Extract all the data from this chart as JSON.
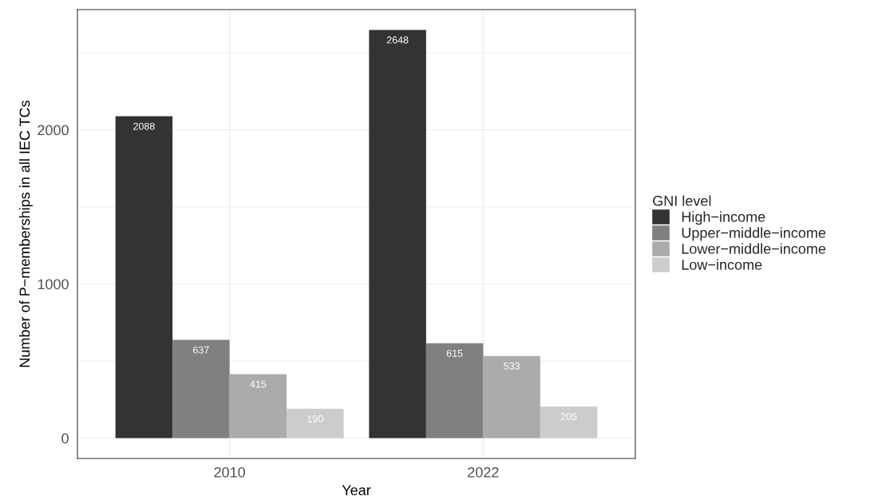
{
  "chart_data": {
    "type": "bar",
    "xlabel": "Year",
    "ylabel": "Number of P−memberships in all IEC TCs",
    "legend_title": "GNI level",
    "categories": [
      "2010",
      "2022"
    ],
    "series": [
      {
        "name": "High−income",
        "color": "#333333",
        "values": [
          2088,
          2648
        ]
      },
      {
        "name": "Upper−middle−income",
        "color": "#808080",
        "values": [
          637,
          615
        ]
      },
      {
        "name": "Lower−middle−income",
        "color": "#ababab",
        "values": [
          415,
          533
        ]
      },
      {
        "name": "Low−income",
        "color": "#cccccc",
        "values": [
          190,
          205
        ]
      }
    ],
    "ylim": [
      -132,
      2780
    ],
    "yticks": [
      0,
      {
        "value": 500,
        "label": null
      },
      1000,
      {
        "value": 1500,
        "label": null
      },
      2000,
      {
        "value": 2500,
        "label": null
      }
    ],
    "data_labels": true,
    "grid": true,
    "legend": "right"
  }
}
